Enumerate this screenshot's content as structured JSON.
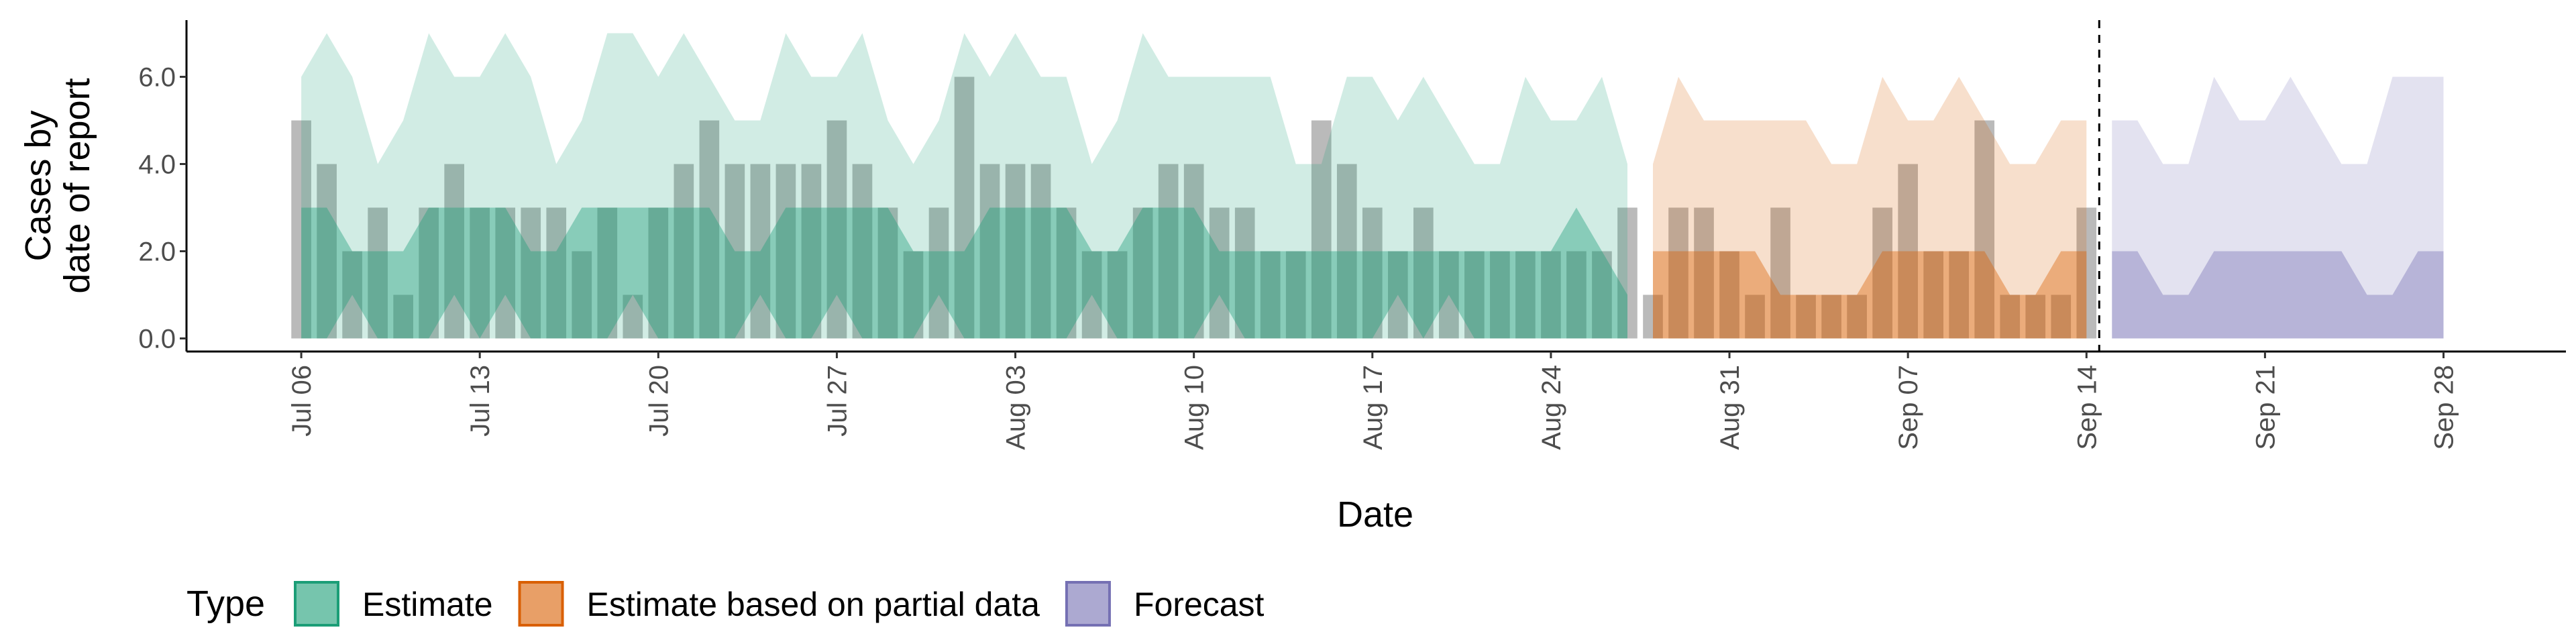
{
  "chart_data": {
    "type": "bar",
    "y_label": [
      "Cases by",
      "date of report"
    ],
    "x_label": "Date",
    "legend_title": "Type",
    "legend_position": "bottom",
    "bar_color": "#8c8c8c",
    "ylim": [
      -0.3,
      7.3
    ],
    "yticks": [
      {
        "value": 0,
        "label": "0.0"
      },
      {
        "value": 2,
        "label": "2.0"
      },
      {
        "value": 4,
        "label": "4.0"
      },
      {
        "value": 6,
        "label": "6.0"
      }
    ],
    "xticks": [
      "Jul 06",
      "Jul 13",
      "Jul 20",
      "Jul 27",
      "Aug 03",
      "Aug 10",
      "Aug 17",
      "Aug 24",
      "Aug 31",
      "Sep 07",
      "Sep 14",
      "Sep 21",
      "Sep 28"
    ],
    "vline_date": "Sep 14",
    "x": [
      "Jul 06",
      "Jul 07",
      "Jul 08",
      "Jul 09",
      "Jul 10",
      "Jul 11",
      "Jul 12",
      "Jul 13",
      "Jul 14",
      "Jul 15",
      "Jul 16",
      "Jul 17",
      "Jul 18",
      "Jul 19",
      "Jul 20",
      "Jul 21",
      "Jul 22",
      "Jul 23",
      "Jul 24",
      "Jul 25",
      "Jul 26",
      "Jul 27",
      "Jul 28",
      "Jul 29",
      "Jul 30",
      "Jul 31",
      "Aug 01",
      "Aug 02",
      "Aug 03",
      "Aug 04",
      "Aug 05",
      "Aug 06",
      "Aug 07",
      "Aug 08",
      "Aug 09",
      "Aug 10",
      "Aug 11",
      "Aug 12",
      "Aug 13",
      "Aug 14",
      "Aug 15",
      "Aug 16",
      "Aug 17",
      "Aug 18",
      "Aug 19",
      "Aug 20",
      "Aug 21",
      "Aug 22",
      "Aug 23",
      "Aug 24",
      "Aug 25",
      "Aug 26",
      "Aug 27",
      "Aug 28",
      "Aug 29",
      "Aug 30",
      "Aug 31",
      "Sep 01",
      "Sep 02",
      "Sep 03",
      "Sep 04",
      "Sep 05",
      "Sep 06",
      "Sep 07",
      "Sep 08",
      "Sep 09",
      "Sep 10",
      "Sep 11",
      "Sep 12",
      "Sep 13",
      "Sep 14",
      "Sep 15",
      "Sep 16",
      "Sep 17",
      "Sep 18",
      "Sep 19",
      "Sep 20",
      "Sep 21",
      "Sep 22",
      "Sep 23",
      "Sep 24",
      "Sep 25",
      "Sep 26",
      "Sep 27",
      "Sep 28"
    ],
    "values": [
      5,
      4,
      2,
      3,
      1,
      3,
      4,
      3,
      3,
      3,
      3,
      2,
      3,
      1,
      3,
      4,
      5,
      4,
      4,
      4,
      4,
      5,
      4,
      3,
      2,
      3,
      6,
      4,
      4,
      4,
      3,
      2,
      2,
      3,
      4,
      4,
      3,
      3,
      2,
      2,
      5,
      4,
      3,
      2,
      3,
      2,
      2,
      2,
      2,
      2,
      2,
      2,
      3,
      1,
      3,
      3,
      2,
      1,
      3,
      1,
      1,
      1,
      3,
      4,
      2,
      2,
      5,
      1,
      1,
      1,
      3,
      null,
      null,
      null,
      null,
      null,
      null,
      null,
      null,
      null,
      null,
      null,
      null,
      null,
      null
    ],
    "series": [
      {
        "name": "Estimate",
        "color": "#1b9e77",
        "x": [
          "Jul 06",
          "Jul 07",
          "Jul 08",
          "Jul 09",
          "Jul 10",
          "Jul 11",
          "Jul 12",
          "Jul 13",
          "Jul 14",
          "Jul 15",
          "Jul 16",
          "Jul 17",
          "Jul 18",
          "Jul 19",
          "Jul 20",
          "Jul 21",
          "Jul 22",
          "Jul 23",
          "Jul 24",
          "Jul 25",
          "Jul 26",
          "Jul 27",
          "Jul 28",
          "Jul 29",
          "Jul 30",
          "Jul 31",
          "Aug 01",
          "Aug 02",
          "Aug 03",
          "Aug 04",
          "Aug 05",
          "Aug 06",
          "Aug 07",
          "Aug 08",
          "Aug 09",
          "Aug 10",
          "Aug 11",
          "Aug 12",
          "Aug 13",
          "Aug 14",
          "Aug 15",
          "Aug 16",
          "Aug 17",
          "Aug 18",
          "Aug 19",
          "Aug 20",
          "Aug 21",
          "Aug 22",
          "Aug 23",
          "Aug 24",
          "Aug 25",
          "Aug 26",
          "Aug 27"
        ],
        "upper_90": [
          6,
          7,
          6,
          4,
          5,
          7,
          6,
          6,
          7,
          6,
          4,
          5,
          7,
          7,
          6,
          7,
          6,
          5,
          5,
          7,
          6,
          6,
          7,
          5,
          4,
          5,
          7,
          6,
          7,
          6,
          6,
          4,
          5,
          7,
          6,
          6,
          6,
          6,
          6,
          4,
          4,
          6,
          6,
          5,
          6,
          5,
          4,
          4,
          6,
          5,
          5,
          6,
          4
        ],
        "lower_90": [
          0,
          0,
          0,
          0,
          0,
          0,
          0,
          0,
          0,
          0,
          0,
          0,
          0,
          0,
          0,
          0,
          0,
          0,
          0,
          0,
          0,
          0,
          0,
          0,
          0,
          0,
          0,
          0,
          0,
          0,
          0,
          0,
          0,
          0,
          0,
          0,
          0,
          0,
          0,
          0,
          0,
          0,
          0,
          0,
          0,
          0,
          0,
          0,
          0,
          0,
          0,
          0,
          0
        ],
        "upper_50": [
          3,
          3,
          2,
          2,
          2,
          3,
          3,
          3,
          3,
          2,
          2,
          3,
          3,
          3,
          3,
          3,
          3,
          2,
          2,
          3,
          3,
          3,
          3,
          3,
          2,
          2,
          2,
          3,
          3,
          3,
          3,
          2,
          2,
          3,
          3,
          3,
          2,
          2,
          2,
          2,
          2,
          2,
          2,
          2,
          2,
          2,
          2,
          2,
          2,
          2,
          3,
          2,
          1
        ],
        "lower_50": [
          0,
          0,
          1,
          0,
          0,
          0,
          1,
          0,
          1,
          0,
          0,
          0,
          0,
          1,
          0,
          0,
          0,
          0,
          1,
          0,
          0,
          1,
          0,
          0,
          0,
          1,
          0,
          0,
          0,
          0,
          0,
          1,
          0,
          0,
          0,
          0,
          1,
          0,
          0,
          0,
          0,
          0,
          0,
          1,
          0,
          1,
          0,
          0,
          0,
          0,
          0,
          0,
          0
        ]
      },
      {
        "name": "Estimate based on partial data",
        "color": "#d95f02",
        "x": [
          "Aug 28",
          "Aug 29",
          "Aug 30",
          "Aug 31",
          "Sep 01",
          "Sep 02",
          "Sep 03",
          "Sep 04",
          "Sep 05",
          "Sep 06",
          "Sep 07",
          "Sep 08",
          "Sep 09",
          "Sep 10",
          "Sep 11",
          "Sep 12",
          "Sep 13",
          "Sep 14"
        ],
        "upper_90": [
          4,
          6,
          5,
          5,
          5,
          5,
          5,
          4,
          4,
          6,
          5,
          5,
          6,
          5,
          4,
          4,
          5,
          5
        ],
        "lower_90": [
          0,
          0,
          0,
          0,
          0,
          0,
          0,
          0,
          0,
          0,
          0,
          0,
          0,
          0,
          0,
          0,
          0,
          0
        ],
        "upper_50": [
          2,
          2,
          2,
          2,
          2,
          1,
          1,
          1,
          1,
          2,
          2,
          2,
          2,
          2,
          1,
          1,
          2,
          2
        ],
        "lower_50": [
          0,
          0,
          0,
          0,
          0,
          0,
          0,
          0,
          0,
          0,
          0,
          0,
          0,
          0,
          0,
          0,
          0,
          0
        ]
      },
      {
        "name": "Forecast",
        "color": "#7570b3",
        "x": [
          "Sep 15",
          "Sep 16",
          "Sep 17",
          "Sep 18",
          "Sep 19",
          "Sep 20",
          "Sep 21",
          "Sep 22",
          "Sep 23",
          "Sep 24",
          "Sep 25",
          "Sep 26",
          "Sep 27",
          "Sep 28"
        ],
        "upper_90": [
          5,
          5,
          4,
          4,
          6,
          5,
          5,
          6,
          5,
          4,
          4,
          6,
          6,
          6
        ],
        "lower_90": [
          0,
          0,
          0,
          0,
          0,
          0,
          0,
          0,
          0,
          0,
          0,
          0,
          0,
          0
        ],
        "upper_50": [
          2,
          2,
          1,
          1,
          2,
          2,
          2,
          2,
          2,
          2,
          1,
          1,
          2,
          2
        ],
        "lower_50": [
          0,
          0,
          0,
          0,
          0,
          0,
          0,
          0,
          0,
          0,
          0,
          0,
          0,
          0
        ]
      }
    ]
  }
}
